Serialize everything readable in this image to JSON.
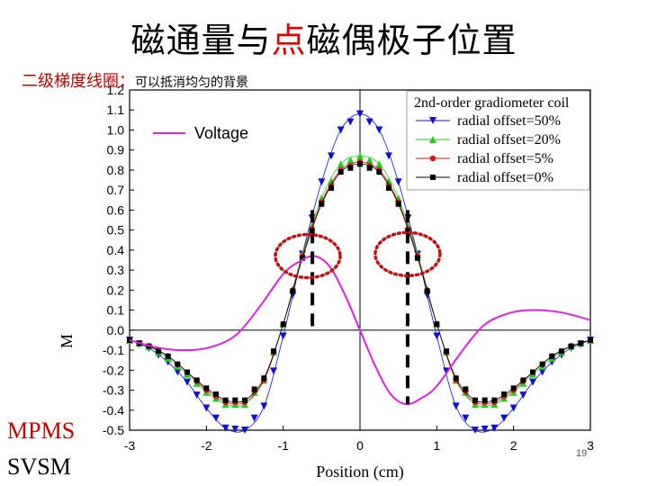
{
  "page": {
    "title_part1": "磁通量与",
    "title_highlight": "点",
    "title_part2": "磁偶极子位置",
    "subtitle_main": "二级梯度线圈：",
    "subtitle_small": "可以抵消均匀的背景",
    "side_label_1": "MPMS",
    "side_label_2": "SVSM",
    "page_number": "19"
  },
  "chart_data": {
    "type": "line",
    "xlabel": "Position (cm)",
    "ylabel": "M",
    "xlim": [
      -3,
      3
    ],
    "ylim": [
      -0.5,
      1.2
    ],
    "xticks": [
      -3,
      -2,
      -1,
      0,
      1,
      2,
      3
    ],
    "yticks": [
      -0.5,
      -0.4,
      -0.3,
      -0.2,
      -0.1,
      0.0,
      0.1,
      0.2,
      0.3,
      0.4,
      0.5,
      0.6,
      0.7,
      0.8,
      0.9,
      1.0,
      1.1,
      1.2
    ],
    "legend_title": "2nd-order gradiometer coil",
    "legend_position": "top-right",
    "annotation_voltage": "Voltage",
    "series": [
      {
        "name": "radial offset=50%",
        "color": "#1010d0",
        "marker": "triangle-down",
        "x": [
          -3.0,
          -2.75,
          -2.5,
          -2.25,
          -2.0,
          -1.75,
          -1.5,
          -1.25,
          -1.0,
          -0.75,
          -0.5,
          -0.25,
          0.0,
          0.25,
          0.5,
          0.75,
          1.0,
          1.25,
          1.5,
          1.75,
          2.0,
          2.25,
          2.5,
          2.75,
          3.0
        ],
        "y": [
          -0.05,
          -0.09,
          -0.16,
          -0.26,
          -0.39,
          -0.49,
          -0.5,
          -0.38,
          -0.03,
          0.38,
          0.74,
          1.0,
          1.08,
          1.0,
          0.74,
          0.38,
          -0.03,
          -0.38,
          -0.5,
          -0.49,
          -0.39,
          -0.26,
          -0.16,
          -0.09,
          -0.05
        ]
      },
      {
        "name": "radial offset=20%",
        "color": "#22cc22",
        "marker": "triangle-up",
        "x": [
          -3.0,
          -2.75,
          -2.5,
          -2.25,
          -2.0,
          -1.75,
          -1.5,
          -1.25,
          -1.0,
          -0.75,
          -0.5,
          -0.25,
          0.0,
          0.25,
          0.5,
          0.75,
          1.0,
          1.25,
          1.5,
          1.75,
          2.0,
          2.25,
          2.5,
          2.75,
          3.0
        ],
        "y": [
          -0.05,
          -0.08,
          -0.14,
          -0.22,
          -0.31,
          -0.37,
          -0.37,
          -0.25,
          0.03,
          0.38,
          0.66,
          0.83,
          0.87,
          0.83,
          0.66,
          0.38,
          0.03,
          -0.25,
          -0.37,
          -0.37,
          -0.31,
          -0.22,
          -0.14,
          -0.08,
          -0.05
        ]
      },
      {
        "name": "radial offset=5%",
        "color": "#dd1010",
        "marker": "circle",
        "x": [
          -3.0,
          -2.75,
          -2.5,
          -2.25,
          -2.0,
          -1.75,
          -1.5,
          -1.25,
          -1.0,
          -0.75,
          -0.5,
          -0.25,
          0.0,
          0.25,
          0.5,
          0.75,
          1.0,
          1.25,
          1.5,
          1.75,
          2.0,
          2.25,
          2.5,
          2.75,
          3.0
        ],
        "y": [
          -0.05,
          -0.08,
          -0.13,
          -0.21,
          -0.3,
          -0.36,
          -0.36,
          -0.25,
          0.03,
          0.37,
          0.64,
          0.8,
          0.84,
          0.8,
          0.64,
          0.37,
          0.03,
          -0.25,
          -0.36,
          -0.36,
          -0.3,
          -0.21,
          -0.13,
          -0.08,
          -0.05
        ]
      },
      {
        "name": "radial offset=0%",
        "color": "#000000",
        "marker": "square",
        "x": [
          -3.0,
          -2.75,
          -2.5,
          -2.25,
          -2.0,
          -1.75,
          -1.5,
          -1.25,
          -1.0,
          -0.75,
          -0.5,
          -0.25,
          0.0,
          0.25,
          0.5,
          0.75,
          1.0,
          1.25,
          1.5,
          1.75,
          2.0,
          2.25,
          2.5,
          2.75,
          3.0
        ],
        "y": [
          -0.05,
          -0.08,
          -0.13,
          -0.21,
          -0.29,
          -0.35,
          -0.35,
          -0.24,
          0.03,
          0.36,
          0.63,
          0.79,
          0.83,
          0.79,
          0.63,
          0.36,
          0.03,
          -0.24,
          -0.35,
          -0.35,
          -0.29,
          -0.21,
          -0.13,
          -0.08,
          -0.05
        ]
      },
      {
        "name": "Voltage",
        "color": "#dd22dd",
        "marker": "none",
        "x": [
          -3.0,
          -2.6,
          -2.2,
          -1.9,
          -1.6,
          -1.3,
          -1.0,
          -0.8,
          -0.6,
          -0.4,
          -0.2,
          0.0,
          0.2,
          0.4,
          0.6,
          0.8,
          1.0,
          1.3,
          1.6,
          1.9,
          2.2,
          2.6,
          3.0
        ],
        "y": [
          -0.05,
          -0.09,
          -0.1,
          -0.08,
          -0.02,
          0.12,
          0.28,
          0.34,
          0.37,
          0.32,
          0.18,
          0.0,
          -0.18,
          -0.32,
          -0.37,
          -0.34,
          -0.28,
          -0.12,
          0.02,
          0.08,
          0.1,
          0.09,
          0.05
        ]
      }
    ],
    "dashed_markers_x": [
      -0.62,
      0.62
    ],
    "dotted_outlines": [
      {
        "x_center": -0.68,
        "y_center": 0.37
      },
      {
        "x_center": 0.62,
        "y_center": 0.38
      }
    ]
  }
}
